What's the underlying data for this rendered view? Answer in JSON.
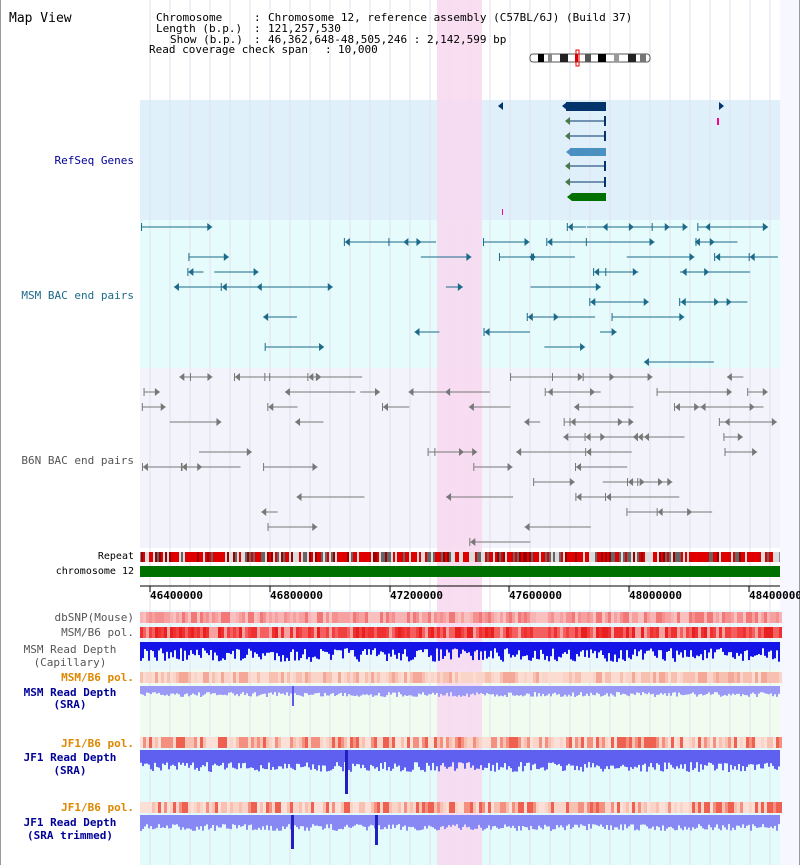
{
  "view_title": "Map View",
  "info": {
    "chromosome_key": "Chromosome",
    "chromosome_val": "Chromosome 12, reference assembly (C57BL/6J) (Build 37)",
    "length_key": "Length (b.p.)",
    "length_val": "121,257,530",
    "show_key": "Show (b.p.)",
    "show_val": "46,362,648-48,505,246 : 2,142,599 bp",
    "coverage_key": "Read coverage check span",
    "coverage_val": "10,000"
  },
  "tracks": {
    "refseq": "RefSeq Genes",
    "msm_bac": "MSM BAC end pairs",
    "b6n_bac": "B6N BAC end pairs",
    "repeat": "Repeat",
    "chromosome": "chromosome 12"
  },
  "axis": {
    "ticks": [
      "46400000",
      "46800000",
      "47200000",
      "47600000",
      "48000000",
      "48400000"
    ]
  },
  "lower_tracks": {
    "dbsnp": "dbSNP(Mouse)",
    "msm_b6_pol_1": "MSM/B6 pol.",
    "msm_read_depth_cap_1": "MSM Read Depth",
    "msm_read_depth_cap_2": "(Capillary)",
    "msm_b6_pol_2": "MSM/B6 pol.",
    "msm_read_depth_sra_1": "MSM Read Depth",
    "msm_read_depth_sra_2": "(SRA)",
    "jf1_b6_pol_1": "JF1/B6 pol.",
    "jf1_read_depth_1": "JF1 Read Depth",
    "jf1_read_depth_2": "(SRA)",
    "jf1_b6_pol_2": "JF1/B6 pol.",
    "jf1_read_depth_trim_1": "JF1 Read Depth",
    "jf1_read_depth_trim_2": "(SRA trimmed)"
  },
  "colors": {
    "refseq_bg": "#dff0fa",
    "msm_bg": "#e6fbfb",
    "b6n_bg": "#f3f3fb",
    "highlight": "#f8d8f0",
    "gene_dark": "#04346c",
    "gene_mid": "#4a90c0",
    "gene_green": "#007000",
    "msm_line": "#1c6a8a",
    "b6n_line": "#777777",
    "chrom_bar": "#007000",
    "depth_blue": "#2020ee",
    "label_blue": "#000099",
    "label_orange": "#dd8800"
  }
}
